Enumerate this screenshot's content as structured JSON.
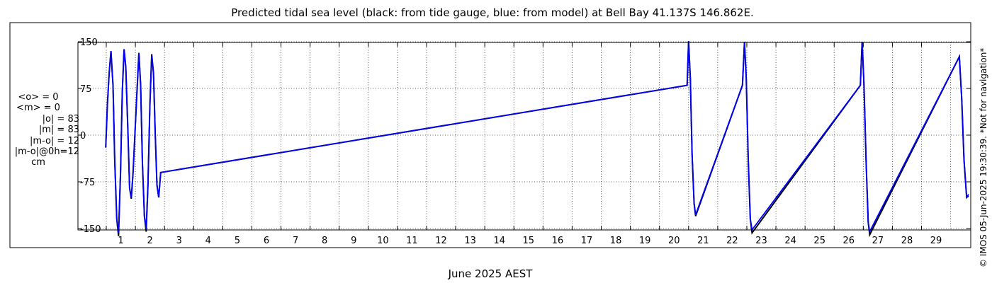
{
  "title": "Predicted tidal sea level (black: from tide gauge, blue: from model) at Bell Bay 41.137S 146.862E.",
  "stats": [
    "<o> = 0",
    "<m> = 0",
    "|o| = 83",
    "|m| = 83",
    "|m-o| = 12",
    "|m-o|@0h=12",
    "cm"
  ],
  "copyright": "© IMOS 05-Jun-2025 19:30:39. *Not for navigation*",
  "colors": {
    "model": "#0000ff",
    "gauge": "#000000",
    "grid": "#333333"
  },
  "chart_data": {
    "type": "line",
    "title": "Predicted tidal sea level (black: from tide gauge, blue: from model) at Bell Bay 41.137S 146.862E.",
    "xlabel": "June 2025 AEST",
    "ylabel": "",
    "xlim": [
      0.3,
      30.2
    ],
    "ylim": [
      -160,
      160
    ],
    "y_ticks": [
      -150,
      -75,
      0,
      75,
      150
    ],
    "y_tick_labels": [
      "-150",
      "-75",
      "0",
      "75",
      "150"
    ],
    "x_ticks": [
      1,
      2,
      3,
      4,
      5,
      6,
      7,
      8,
      9,
      10,
      11,
      12,
      13,
      14,
      15,
      16,
      17,
      18,
      19,
      20,
      21,
      22,
      23,
      24,
      25,
      26,
      27,
      28,
      29
    ],
    "x_tick_labels": [
      "1",
      "2",
      "3",
      "4",
      "5",
      "6",
      "7",
      "8",
      "9",
      "10",
      "11",
      "12",
      "13",
      "14",
      "15",
      "16",
      "17",
      "18",
      "19",
      "20",
      "21",
      "22",
      "23",
      "24",
      "25",
      "26",
      "27",
      "28",
      "29"
    ],
    "grid": true,
    "series": [
      {
        "name": "from tide gauge",
        "color": "#000000",
        "points": [
          [
            0.48,
            -20
          ],
          [
            0.54,
            50
          ],
          [
            0.6,
            100
          ],
          [
            0.66,
            135
          ],
          [
            0.73,
            80
          ],
          [
            0.79,
            -40
          ],
          [
            0.86,
            -135
          ],
          [
            0.92,
            -162
          ],
          [
            0.99,
            -60
          ],
          [
            1.05,
            70
          ],
          [
            1.11,
            138
          ],
          [
            1.17,
            110
          ],
          [
            1.24,
            10
          ],
          [
            1.3,
            -85
          ],
          [
            1.36,
            -102
          ],
          [
            1.42,
            -60
          ],
          [
            1.55,
            65
          ],
          [
            1.62,
            132
          ],
          [
            1.68,
            80
          ],
          [
            1.74,
            -45
          ],
          [
            1.81,
            -130
          ],
          [
            1.87,
            -155
          ],
          [
            1.93,
            -80
          ],
          [
            2.0,
            50
          ],
          [
            2.06,
            130
          ],
          [
            2.12,
            100
          ],
          [
            2.18,
            5
          ],
          [
            2.24,
            -80
          ],
          [
            2.3,
            -100
          ],
          [
            2.37,
            -60
          ],
          [
            20.45,
            80
          ],
          [
            20.5,
            151
          ],
          [
            20.56,
            90
          ],
          [
            20.62,
            -30
          ],
          [
            20.69,
            -110
          ],
          [
            20.74,
            -130
          ],
          [
            22.35,
            80
          ],
          [
            22.42,
            150
          ],
          [
            22.48,
            90
          ],
          [
            22.55,
            -40
          ],
          [
            22.62,
            -135
          ],
          [
            22.68,
            -157
          ],
          [
            26.4,
            80
          ],
          [
            26.46,
            150
          ],
          [
            26.52,
            85
          ],
          [
            26.6,
            -45
          ],
          [
            26.67,
            -140
          ],
          [
            26.72,
            -160
          ],
          [
            29.8,
            126
          ],
          [
            29.88,
            60
          ],
          [
            29.96,
            -40
          ],
          [
            30.05,
            -100
          ],
          [
            30.12,
            -98
          ]
        ]
      },
      {
        "name": "from model",
        "color": "#0000ff",
        "points": [
          [
            0.48,
            -20
          ],
          [
            0.54,
            50
          ],
          [
            0.6,
            100
          ],
          [
            0.66,
            135
          ],
          [
            0.73,
            80
          ],
          [
            0.79,
            -40
          ],
          [
            0.86,
            -135
          ],
          [
            0.92,
            -157
          ],
          [
            0.99,
            -60
          ],
          [
            1.05,
            70
          ],
          [
            1.11,
            138
          ],
          [
            1.17,
            110
          ],
          [
            1.24,
            10
          ],
          [
            1.3,
            -85
          ],
          [
            1.36,
            -100
          ],
          [
            1.42,
            -60
          ],
          [
            1.55,
            65
          ],
          [
            1.62,
            132
          ],
          [
            1.68,
            80
          ],
          [
            1.74,
            -45
          ],
          [
            1.81,
            -130
          ],
          [
            1.87,
            -150
          ],
          [
            1.93,
            -80
          ],
          [
            2.0,
            50
          ],
          [
            2.06,
            128
          ],
          [
            2.12,
            100
          ],
          [
            2.18,
            5
          ],
          [
            2.24,
            -80
          ],
          [
            2.3,
            -100
          ],
          [
            2.37,
            -60
          ],
          [
            20.45,
            80
          ],
          [
            20.5,
            151
          ],
          [
            20.56,
            90
          ],
          [
            20.62,
            -30
          ],
          [
            20.69,
            -110
          ],
          [
            20.74,
            -128
          ],
          [
            22.35,
            80
          ],
          [
            22.42,
            150
          ],
          [
            22.48,
            90
          ],
          [
            22.55,
            -40
          ],
          [
            22.62,
            -135
          ],
          [
            22.68,
            -152
          ],
          [
            26.4,
            80
          ],
          [
            26.46,
            150
          ],
          [
            26.52,
            85
          ],
          [
            26.6,
            -45
          ],
          [
            26.67,
            -140
          ],
          [
            26.72,
            -155
          ],
          [
            29.8,
            126
          ],
          [
            29.88,
            60
          ],
          [
            29.96,
            -40
          ],
          [
            30.05,
            -100
          ],
          [
            30.12,
            -95
          ]
        ]
      }
    ]
  }
}
